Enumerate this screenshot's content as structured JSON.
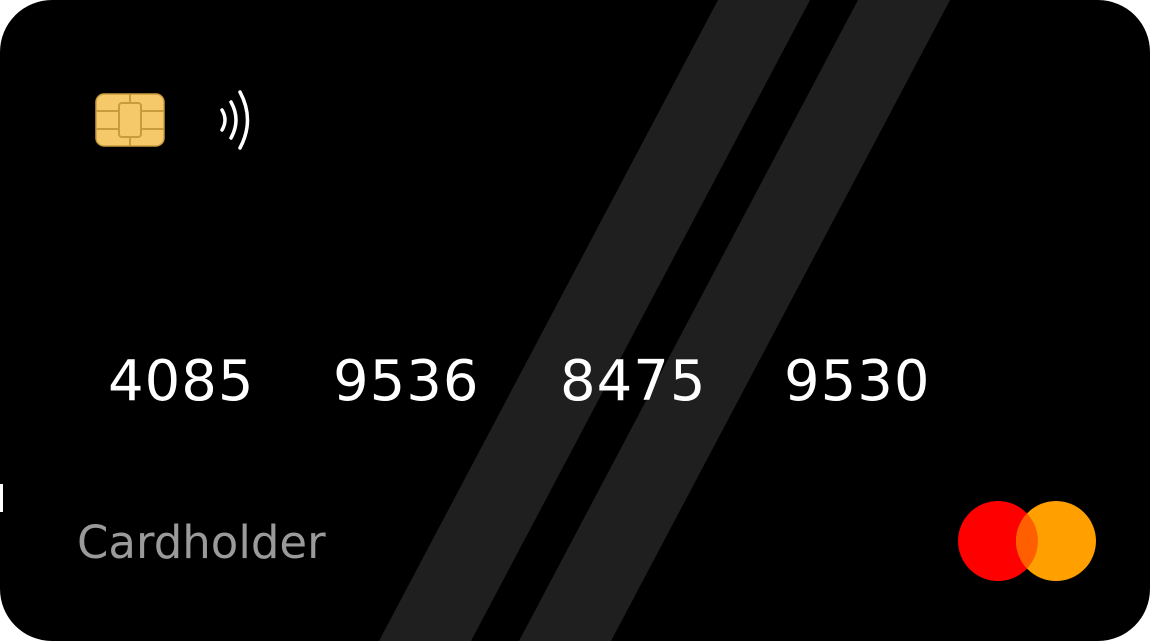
{
  "card": {
    "number_groups": [
      "4085",
      "9536",
      "8475",
      "9530"
    ],
    "cardholder": "Cardholder",
    "colors": {
      "background": "#000000",
      "stripe": "#1f1f1f",
      "chip": "#f5c86a",
      "number": "#ffffff",
      "cardholder": "#9a9a9a",
      "logo_left": "#ff0000",
      "logo_right": "#ff9f00",
      "logo_overlap": "#ff5f00"
    },
    "icons": {
      "chip": "emv-chip-icon",
      "contactless": "contactless-icon",
      "network": "mastercard-logo"
    }
  }
}
